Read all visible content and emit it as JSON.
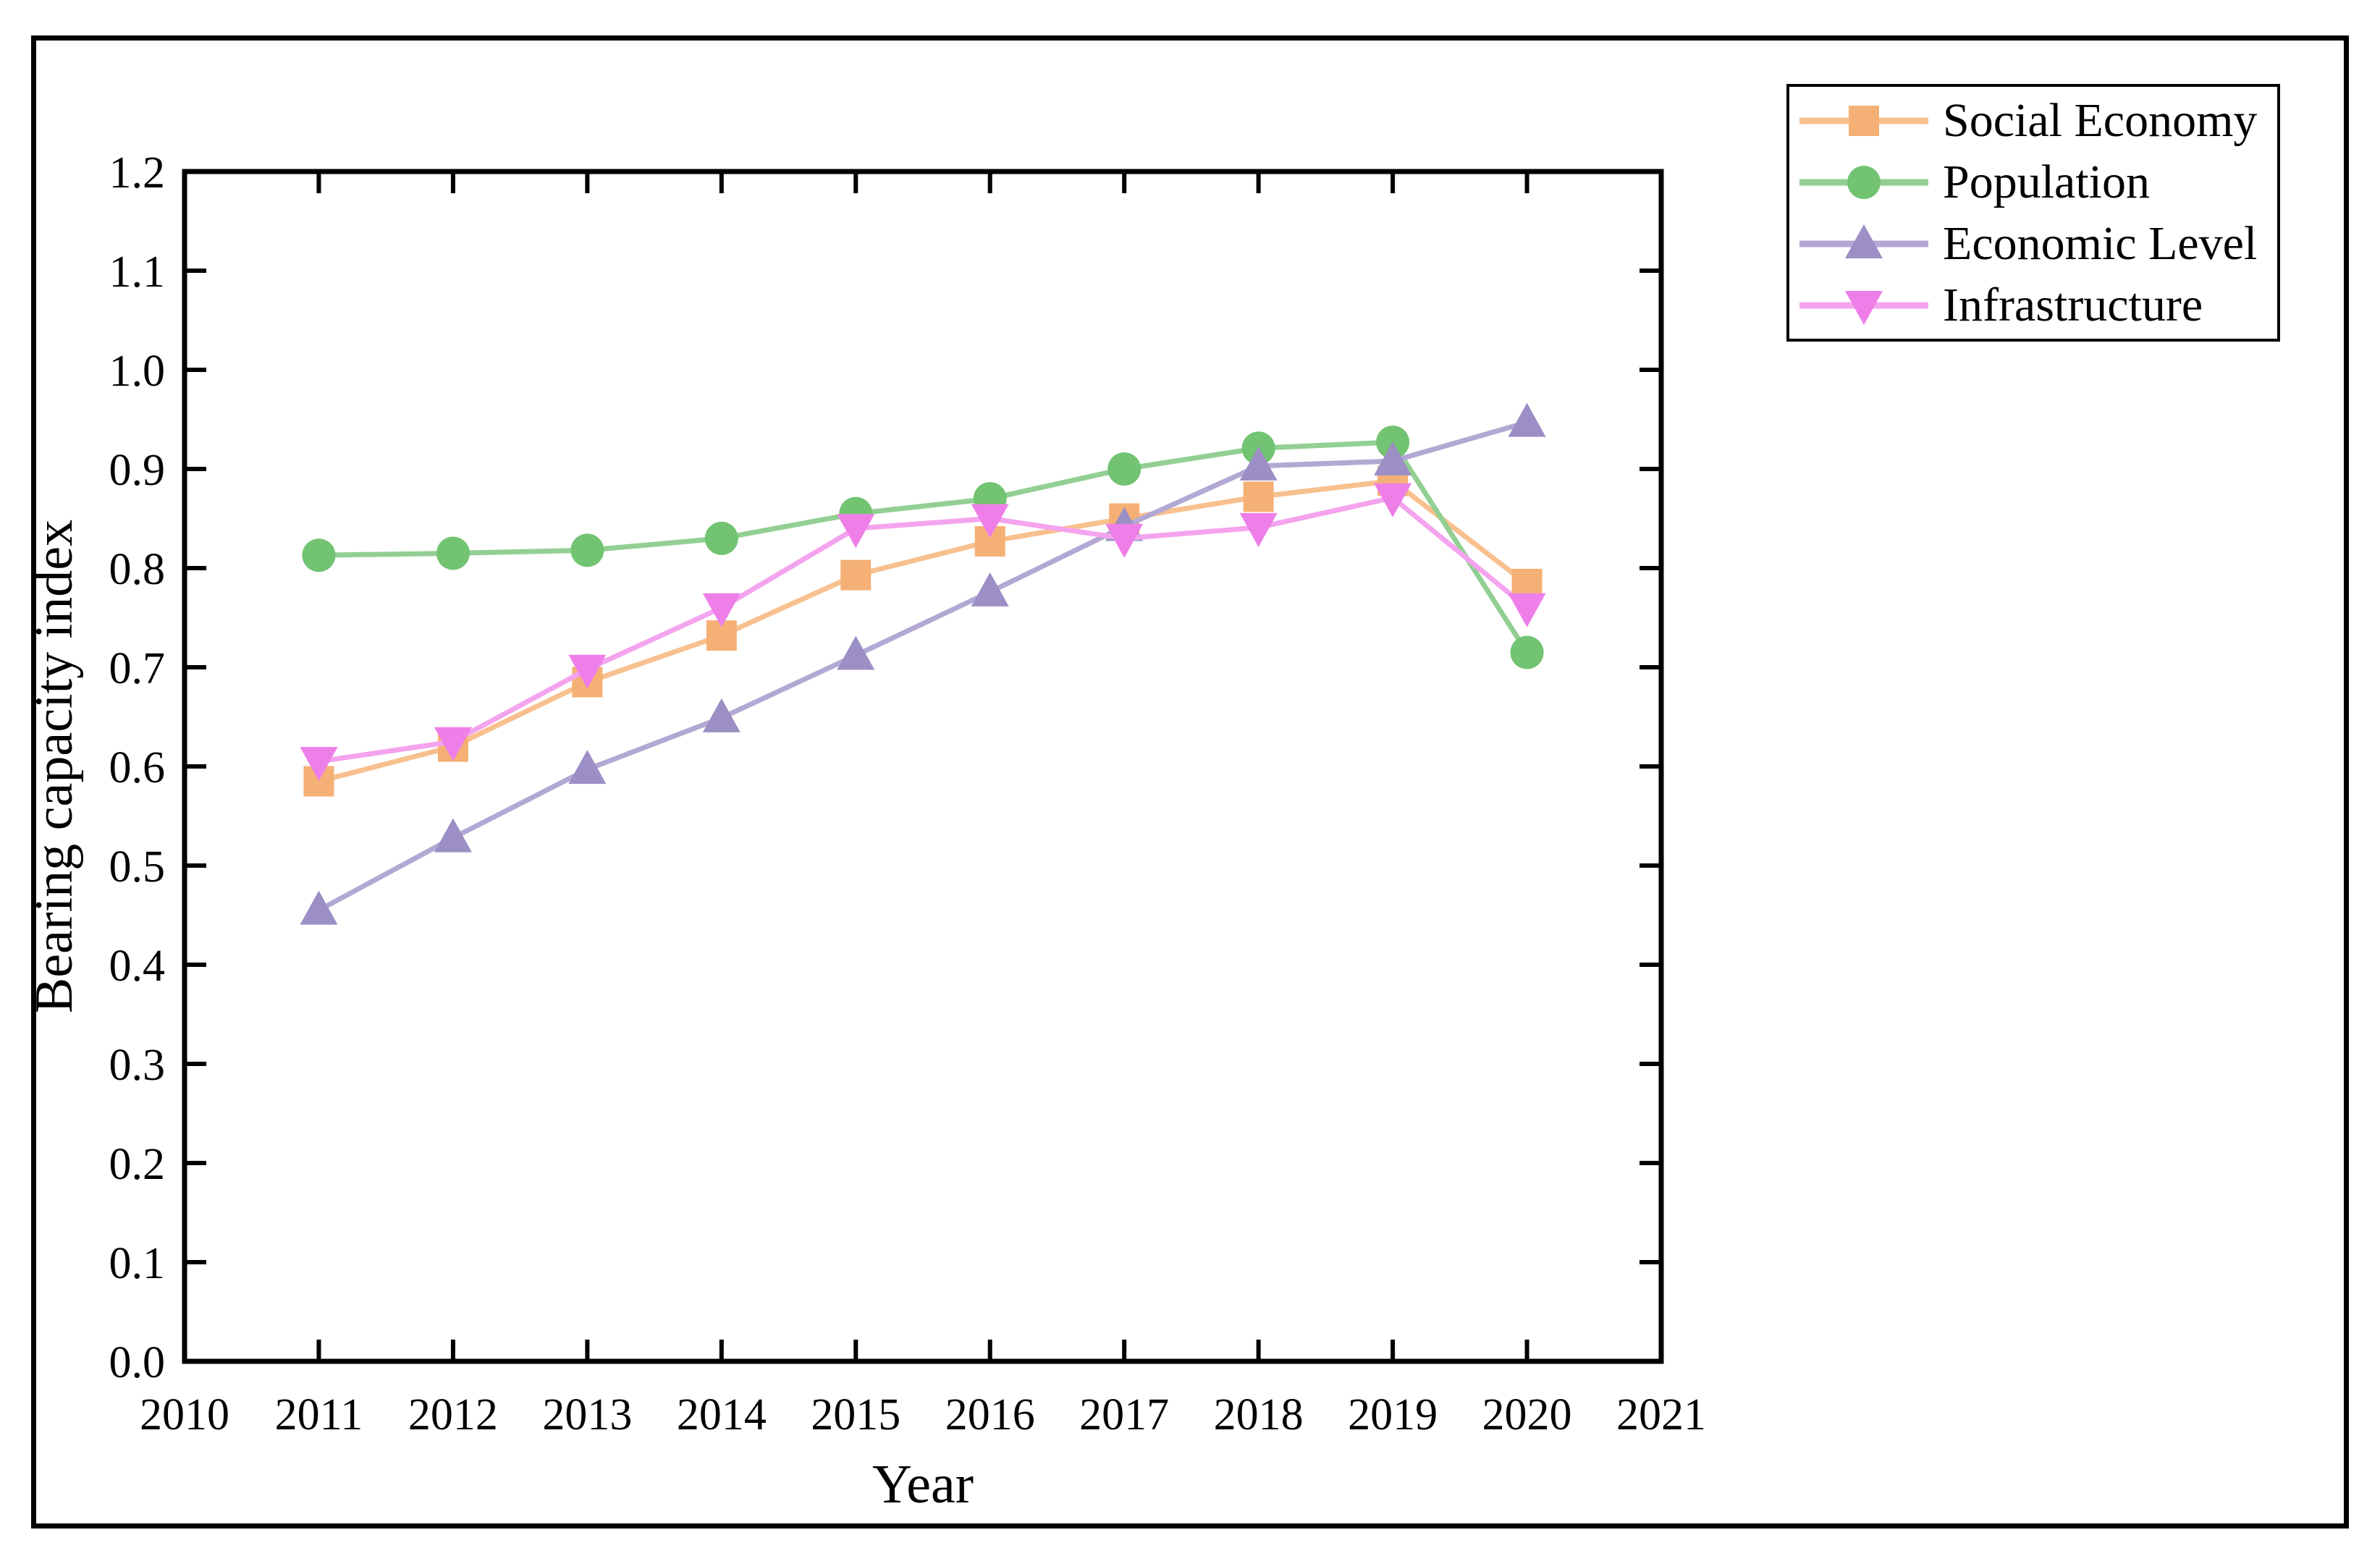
{
  "figure": {
    "background": "#FFFFFF",
    "frame_color": "#000000"
  },
  "chart_data": {
    "type": "line",
    "title": "",
    "xlabel": "Year",
    "ylabel": "Bearing capacity index",
    "xlim": [
      2010,
      2021
    ],
    "ylim": [
      0.0,
      1.2
    ],
    "x_ticks": [
      2010,
      2011,
      2012,
      2013,
      2014,
      2015,
      2016,
      2017,
      2018,
      2019,
      2020,
      2021
    ],
    "y_ticks": [
      0.0,
      0.1,
      0.2,
      0.3,
      0.4,
      0.5,
      0.6,
      0.7,
      0.8,
      0.9,
      1.0,
      1.1,
      1.2
    ],
    "grid": false,
    "legend_position": "top-right",
    "x": [
      2011,
      2012,
      2013,
      2014,
      2015,
      2016,
      2017,
      2018,
      2019,
      2020
    ],
    "series": [
      {
        "name": "Social Economy",
        "marker": "square",
        "line_color": "#F8C08E",
        "marker_color": "#F5B175",
        "values": [
          0.585,
          0.62,
          0.685,
          0.732,
          0.793,
          0.827,
          0.85,
          0.872,
          0.888,
          0.784
        ]
      },
      {
        "name": "Population",
        "marker": "circle",
        "line_color": "#92CF92",
        "marker_color": "#72C372",
        "values": [
          0.813,
          0.815,
          0.818,
          0.83,
          0.855,
          0.87,
          0.9,
          0.921,
          0.927,
          0.715
        ]
      },
      {
        "name": "Economic Level",
        "marker": "triangle-up",
        "line_color": "#B2A8D3",
        "marker_color": "#9C8FC5",
        "values": [
          0.455,
          0.528,
          0.597,
          0.649,
          0.712,
          0.776,
          0.842,
          0.903,
          0.908,
          0.947
        ]
      },
      {
        "name": "Infrastructure",
        "marker": "triangle-down",
        "line_color": "#F4A4EE",
        "marker_color": "#EF7FE8",
        "values": [
          0.605,
          0.625,
          0.698,
          0.76,
          0.84,
          0.85,
          0.83,
          0.841,
          0.871,
          0.76
        ]
      }
    ]
  }
}
